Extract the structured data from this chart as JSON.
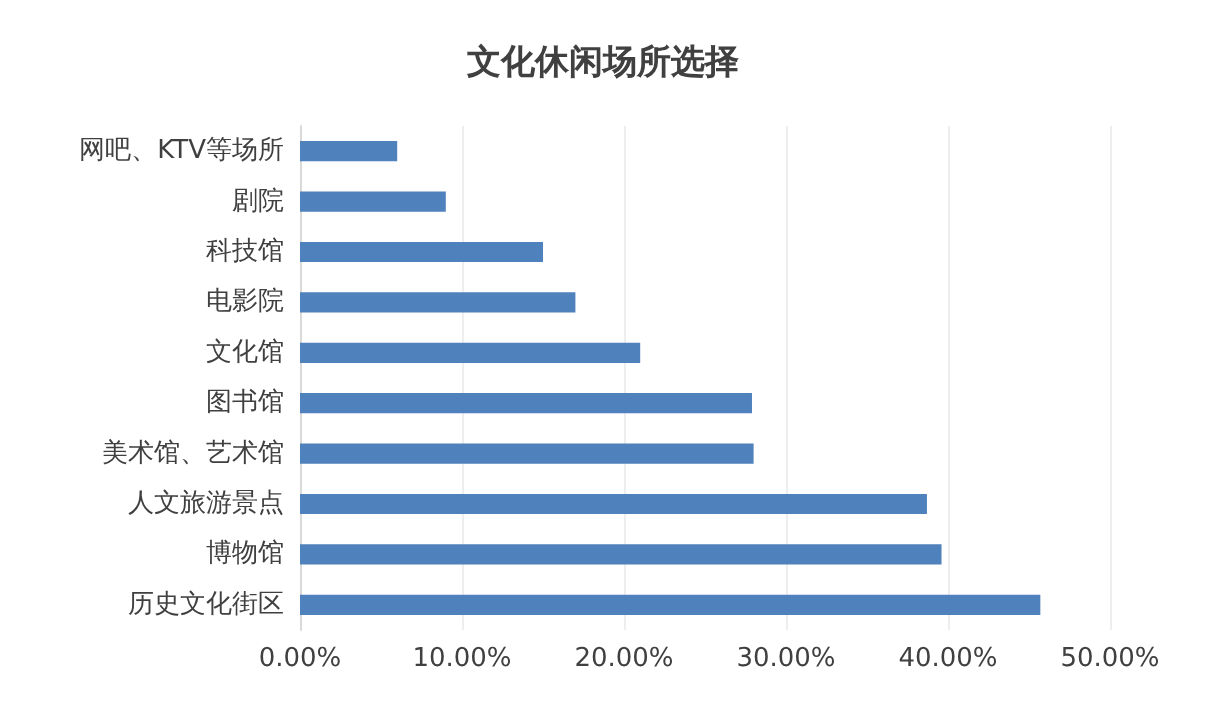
{
  "chart_data": {
    "type": "bar",
    "orientation": "horizontal",
    "title": "文化休闲场所选择",
    "categories": [
      "网吧、KTV等场所",
      "剧院",
      "科技馆",
      "电影院",
      "文化馆",
      "图书馆",
      "美术馆、艺术馆",
      "人文旅游景点",
      "博物馆",
      "历史文化街区"
    ],
    "values": [
      6.0,
      9.0,
      15.0,
      17.0,
      21.0,
      27.9,
      28.0,
      38.7,
      39.6,
      45.7
    ],
    "color": "#4f81bd",
    "xlim": [
      0,
      50
    ],
    "xticks": [
      {
        "value": 0,
        "label": "0.00%"
      },
      {
        "value": 10,
        "label": "10.00%"
      },
      {
        "value": 20,
        "label": "20.00%"
      },
      {
        "value": 30,
        "label": "30.00%"
      },
      {
        "value": 40,
        "label": "40.00%"
      },
      {
        "value": 50,
        "label": "50.00%"
      }
    ],
    "grid": true
  }
}
